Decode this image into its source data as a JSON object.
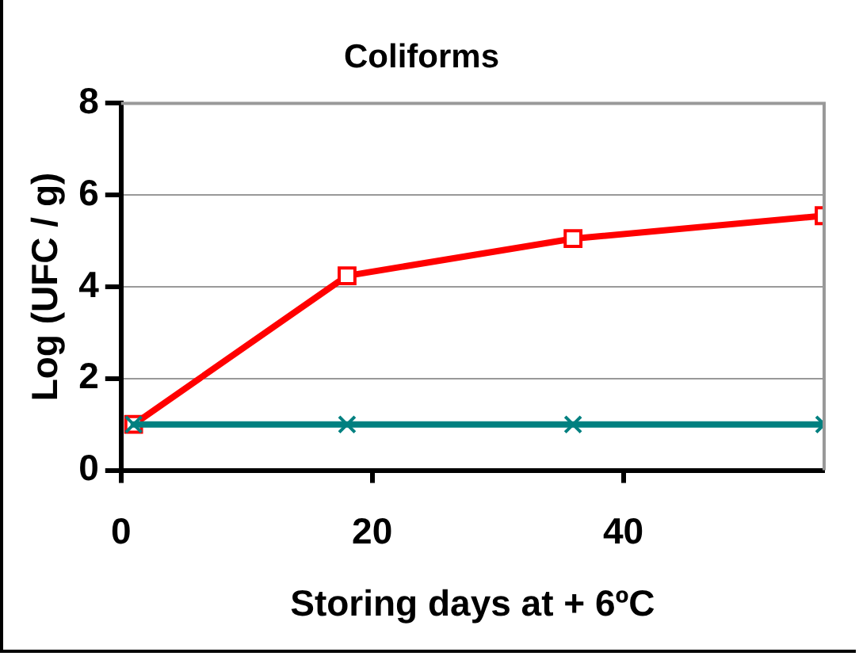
{
  "chart_data": {
    "type": "line",
    "title": "Coliforms",
    "xlabel": "Storing days at + 6ºC",
    "ylabel": "Log (UFC / g)",
    "x": [
      1,
      18,
      36,
      56
    ],
    "xlim": [
      0,
      56
    ],
    "xticks": [
      0,
      20,
      40
    ],
    "ylim": [
      0,
      8
    ],
    "yticks": [
      0,
      2,
      4,
      6,
      8
    ],
    "grid": "y",
    "line_style": "solid",
    "series": [
      {
        "color": "#ff0000",
        "marker": "square",
        "values": [
          1,
          4.24,
          5.05,
          5.55
        ]
      },
      {
        "color": "#008080",
        "marker": "cross",
        "values": [
          1,
          1,
          1,
          1
        ]
      }
    ]
  }
}
